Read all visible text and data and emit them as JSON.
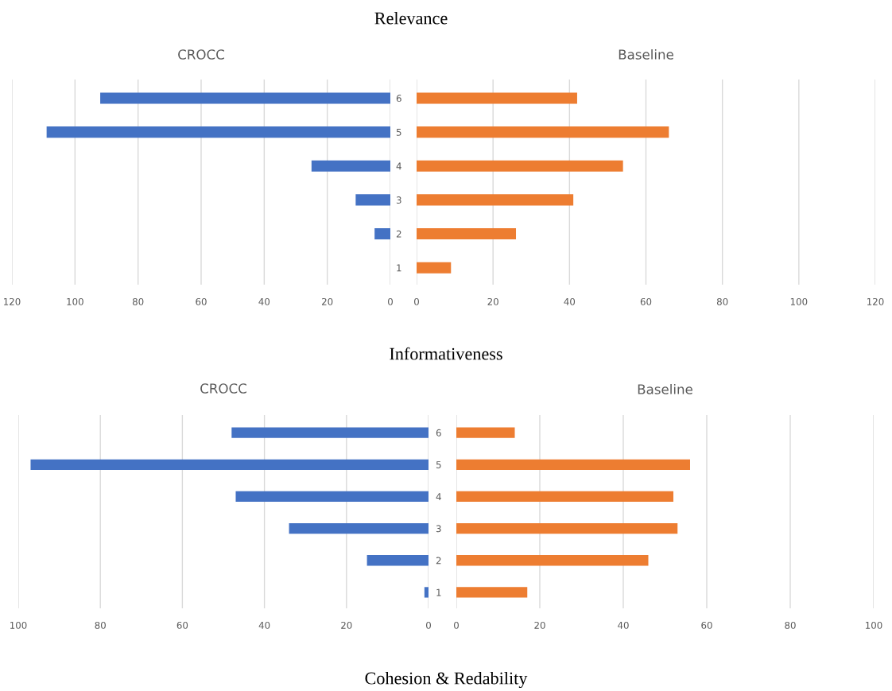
{
  "chart_data": [
    {
      "type": "bar",
      "orientation": "horizontal",
      "title": "CROCC",
      "annotations": [
        "Relevance"
      ],
      "categories": [
        "6",
        "5",
        "4",
        "3",
        "2",
        "1"
      ],
      "values": [
        92,
        109,
        25,
        11,
        5,
        0
      ],
      "color": "#4472c4",
      "xlim": [
        120,
        0
      ],
      "xticks": [
        120,
        100,
        80,
        60,
        40,
        20,
        0
      ],
      "grid": "x",
      "tick_labels": "x"
    },
    {
      "type": "bar",
      "orientation": "horizontal",
      "title": "Baseline",
      "categories": [
        "6",
        "5",
        "4",
        "3",
        "2",
        "1"
      ],
      "values": [
        42,
        66,
        54,
        41,
        26,
        9
      ],
      "color": "#ed7d31",
      "xlim": [
        0,
        120
      ],
      "xticks": [
        0,
        20,
        40,
        60,
        80,
        100,
        120
      ],
      "grid": "x"
    },
    {
      "type": "bar",
      "orientation": "horizontal",
      "title": "CROCC",
      "annotations": [
        "Informativeness"
      ],
      "categories": [
        "6",
        "5",
        "4",
        "3",
        "2",
        "1"
      ],
      "values": [
        48,
        97,
        47,
        34,
        15,
        1
      ],
      "color": "#4472c4",
      "xlim": [
        100,
        0
      ],
      "xticks": [
        100,
        80,
        60,
        40,
        20,
        0
      ],
      "grid": "x",
      "tick_labels": "x"
    },
    {
      "type": "bar",
      "orientation": "horizontal",
      "title": "Baseline",
      "annotations": [
        "Cohesion & Redability"
      ],
      "categories": [
        "6",
        "5",
        "4",
        "3",
        "2",
        "1"
      ],
      "values": [
        14,
        56,
        52,
        53,
        46,
        17
      ],
      "color": "#ed7d31",
      "xlim": [
        0,
        100
      ],
      "xticks": [
        0,
        20,
        40,
        60,
        80,
        100
      ],
      "grid": "x"
    }
  ]
}
